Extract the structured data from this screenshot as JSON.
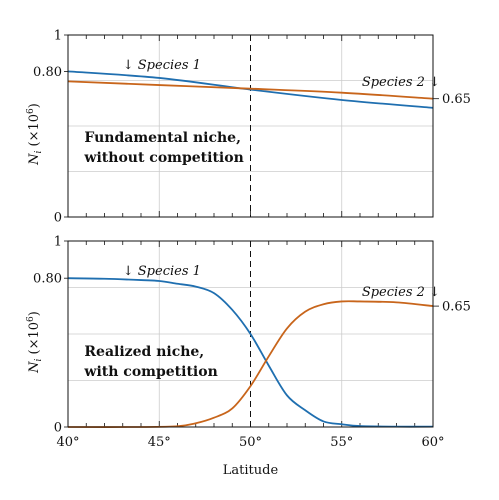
{
  "chart_data": [
    {
      "type": "line",
      "panel": "top",
      "xlim": [
        40,
        60
      ],
      "ylim": [
        0,
        1
      ],
      "yticks": [
        0,
        0.8,
        1
      ],
      "ytick_labels": [
        "0",
        "0.80",
        "1"
      ],
      "ylabel_var": "N",
      "ylabel_sub": "i",
      "ylabel_unit_open": "(×10",
      "ylabel_unit_exp": "6",
      "ylabel_unit_close": ")",
      "right_label": "0.65",
      "right_label_value": 0.65,
      "annotation_line1": "Fundamental niche,",
      "annotation_line2": "without competition",
      "species1_label": "↓ Species 1",
      "species2_label": "Species 2 ↓",
      "vline_x": 50,
      "grid": true,
      "series": [
        {
          "name": "Species 1",
          "color": "#1f6fb0",
          "x": [
            40,
            45,
            50,
            55,
            60
          ],
          "y": [
            0.8,
            0.764,
            0.7,
            0.643,
            0.6
          ]
        },
        {
          "name": "Species 2",
          "color": "#c8651b",
          "x": [
            40,
            45,
            50,
            55,
            60
          ],
          "y": [
            0.745,
            0.725,
            0.705,
            0.683,
            0.65
          ]
        }
      ]
    },
    {
      "type": "line",
      "panel": "bottom",
      "xlim": [
        40,
        60
      ],
      "ylim": [
        0,
        1
      ],
      "yticks": [
        0,
        0.8,
        1
      ],
      "ytick_labels": [
        "0",
        "0.80",
        "1"
      ],
      "xticks": [
        40,
        45,
        50,
        55,
        60
      ],
      "xtick_labels": [
        "40°",
        "45°",
        "50°",
        "55°",
        "60°"
      ],
      "xlabel": "Latitude",
      "ylabel_var": "N",
      "ylabel_sub": "i",
      "ylabel_unit_open": "(×10",
      "ylabel_unit_exp": "6",
      "ylabel_unit_close": ")",
      "right_label": "0.65",
      "right_label_value": 0.65,
      "annotation_line1": "Realized niche,",
      "annotation_line2": "with competition",
      "species1_label": "↓ Species 1",
      "species2_label": "Species 2 ↓",
      "vline_x": 50,
      "grid": true,
      "series": [
        {
          "name": "Species 1",
          "color": "#1f6fb0",
          "x": [
            40,
            42,
            44,
            45,
            46,
            47,
            48,
            49,
            50,
            51,
            52,
            53,
            54,
            55,
            56,
            58,
            60
          ],
          "y": [
            0.8,
            0.797,
            0.79,
            0.785,
            0.77,
            0.755,
            0.72,
            0.63,
            0.5,
            0.33,
            0.17,
            0.09,
            0.03,
            0.015,
            0.005,
            0.002,
            0.002
          ]
        },
        {
          "name": "Species 2",
          "color": "#c8651b",
          "x": [
            40,
            44,
            46,
            47,
            48,
            49,
            50,
            51,
            52,
            53,
            54,
            55,
            56,
            58,
            60
          ],
          "y": [
            0.0,
            0.0,
            0.004,
            0.02,
            0.05,
            0.1,
            0.22,
            0.38,
            0.53,
            0.62,
            0.66,
            0.675,
            0.675,
            0.67,
            0.65
          ]
        }
      ]
    }
  ]
}
